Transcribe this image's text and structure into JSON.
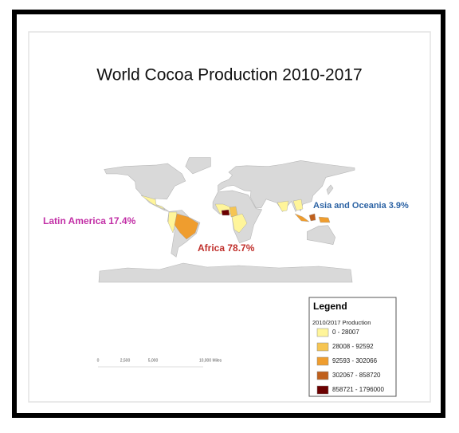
{
  "title": "World Cocoa Production 2010-2017",
  "annotations": [
    {
      "text": "Latin America 17.4%",
      "color": "#c22fa6"
    },
    {
      "text": "Africa 78.7%",
      "color": "#c0302c"
    },
    {
      "text": "Asia and Oceania 3.9%",
      "color": "#2c63a4"
    }
  ],
  "legend": {
    "title": "Legend",
    "subtitle": "2010/2017 Production",
    "items": [
      {
        "label": "0 - 28007",
        "color": "#fff59a"
      },
      {
        "label": "28008 - 92592",
        "color": "#f6c552"
      },
      {
        "label": "92593 - 302066",
        "color": "#ef9d2e"
      },
      {
        "label": "302067 - 858720",
        "color": "#c0601c"
      },
      {
        "label": "858721 - 1796000",
        "color": "#6b0000"
      }
    ]
  },
  "scale_bar": {
    "labels": [
      "0",
      "2,500",
      "5,000",
      "10,000 Miles"
    ]
  }
}
